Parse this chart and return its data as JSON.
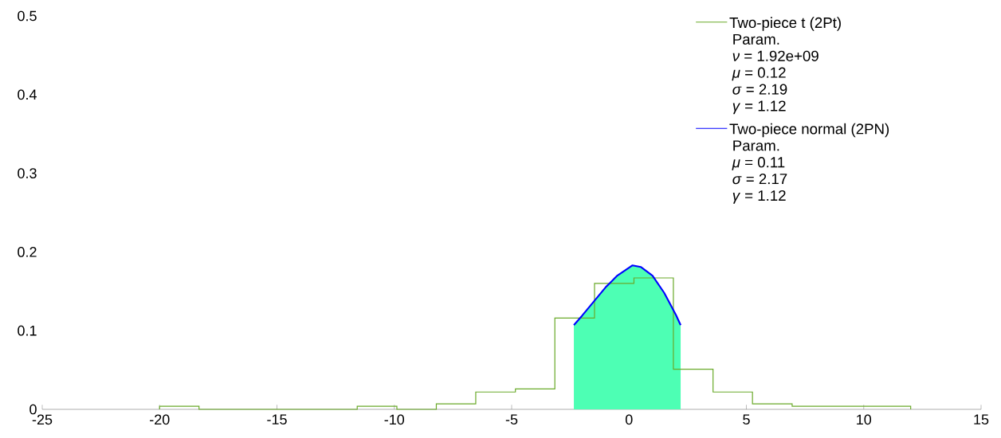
{
  "chart_data": {
    "type": "histogram",
    "xlim": [
      -25,
      15
    ],
    "ylim": [
      0,
      0.5
    ],
    "xticks": [
      -25,
      -20,
      -15,
      -10,
      -5,
      0,
      5,
      10,
      15
    ],
    "yticks": [
      0,
      0.1,
      0.2,
      0.3,
      0.4,
      0.5
    ],
    "legend": "top right",
    "grid": false,
    "marker": "none",
    "series": [
      {
        "type": "histogram",
        "name": "Two-piece t (2Pt)",
        "color": "#6aaa2a",
        "bins": [
          -20,
          -18.32,
          -16.63,
          -14.95,
          -13.26,
          -11.58,
          -9.89,
          -8.21,
          -6.53,
          -4.84,
          -3.16,
          -1.47,
          0.21,
          1.89,
          3.58,
          5.26,
          6.95,
          8.63,
          10.32,
          12.0
        ],
        "values": [
          0.004,
          0,
          0,
          0,
          0,
          0.004,
          0,
          0.007,
          0.022,
          0.026,
          0.116,
          0.16,
          0.167,
          0.051,
          0.022,
          0.007,
          0.004,
          0.004,
          0.004
        ]
      },
      {
        "type": "area",
        "color": "#4dffb4",
        "x": [
          -2.35,
          -2.0,
          -1.5,
          -1.0,
          -0.5,
          0,
          0.15,
          0.5,
          1.0,
          1.5,
          2.0,
          2.2
        ],
        "values": [
          0.107,
          0.119,
          0.137,
          0.155,
          0.17,
          0.18,
          0.183,
          0.181,
          0.17,
          0.148,
          0.12,
          0.107
        ]
      },
      {
        "type": "line",
        "name": "Two-piece normal (2PN)",
        "color": "#0000ff",
        "x": [
          -2.35,
          -2.0,
          -1.5,
          -1.0,
          -0.5,
          0,
          0.15,
          0.5,
          1.0,
          1.5,
          2.0,
          2.2
        ],
        "values": [
          0.107,
          0.119,
          0.137,
          0.155,
          0.17,
          0.18,
          0.183,
          0.181,
          0.17,
          0.148,
          0.12,
          0.107
        ]
      }
    ],
    "annotations": [
      "Param.",
      "*ν* = 1.92e+09",
      "*μ* = 0.12",
      "*σ* = 2.19",
      "*γ* = 1.12",
      "Param.",
      "*μ* = 0.11",
      "*σ* = 2.17",
      "*γ* = 1.12"
    ]
  }
}
